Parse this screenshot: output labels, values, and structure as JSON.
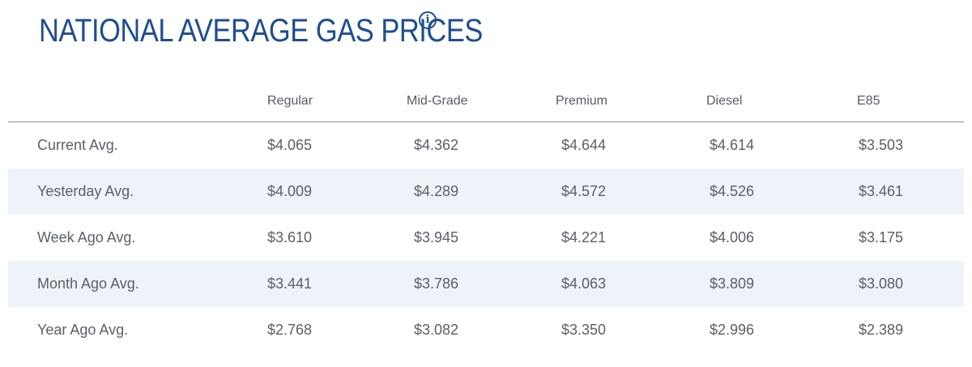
{
  "header": {
    "title": "NATIONAL AVERAGE GAS PRICES",
    "info_icon": "info-circle-icon",
    "accent_color": "#1f4e8f"
  },
  "table": {
    "columns": [
      "Regular",
      "Mid-Grade",
      "Premium",
      "Diesel",
      "E85"
    ],
    "rows": [
      {
        "label": "Current Avg.",
        "values": [
          "$4.065",
          "$4.362",
          "$4.644",
          "$4.614",
          "$3.503"
        ]
      },
      {
        "label": "Yesterday Avg.",
        "values": [
          "$4.009",
          "$4.289",
          "$4.572",
          "$4.526",
          "$3.461"
        ]
      },
      {
        "label": "Week Ago Avg.",
        "values": [
          "$3.610",
          "$3.945",
          "$4.221",
          "$4.006",
          "$3.175"
        ]
      },
      {
        "label": "Month Ago Avg.",
        "values": [
          "$3.441",
          "$3.786",
          "$4.063",
          "$3.809",
          "$3.080"
        ]
      },
      {
        "label": "Year Ago Avg.",
        "values": [
          "$2.768",
          "$3.082",
          "$3.350",
          "$2.996",
          "$2.389"
        ]
      }
    ],
    "stripe_color": "#eef3f9"
  }
}
